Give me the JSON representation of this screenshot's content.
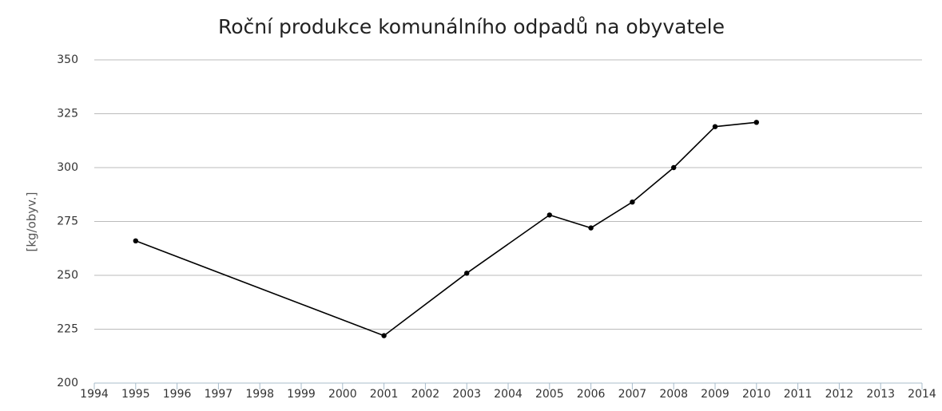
{
  "chart_data": {
    "type": "line",
    "title": "Roční produkce komunálního odpadů na obyvatele",
    "y_label": "[kg/obyv.]",
    "x": [
      1995,
      2001,
      2003,
      2005,
      2006,
      2007,
      2008,
      2009,
      2010
    ],
    "values": [
      266,
      222,
      251,
      278,
      272,
      284,
      300,
      319,
      321
    ],
    "color": "#000000",
    "xlim": [
      1994,
      2014
    ],
    "xticks": [
      1994,
      1995,
      1996,
      1997,
      1998,
      1999,
      2000,
      2001,
      2002,
      2003,
      2004,
      2005,
      2006,
      2007,
      2008,
      2009,
      2010,
      2011,
      2012,
      2013,
      2014
    ],
    "ylim": [
      200,
      350
    ],
    "yticks": [
      200,
      225,
      250,
      275,
      300,
      325,
      350
    ],
    "grid": true
  }
}
